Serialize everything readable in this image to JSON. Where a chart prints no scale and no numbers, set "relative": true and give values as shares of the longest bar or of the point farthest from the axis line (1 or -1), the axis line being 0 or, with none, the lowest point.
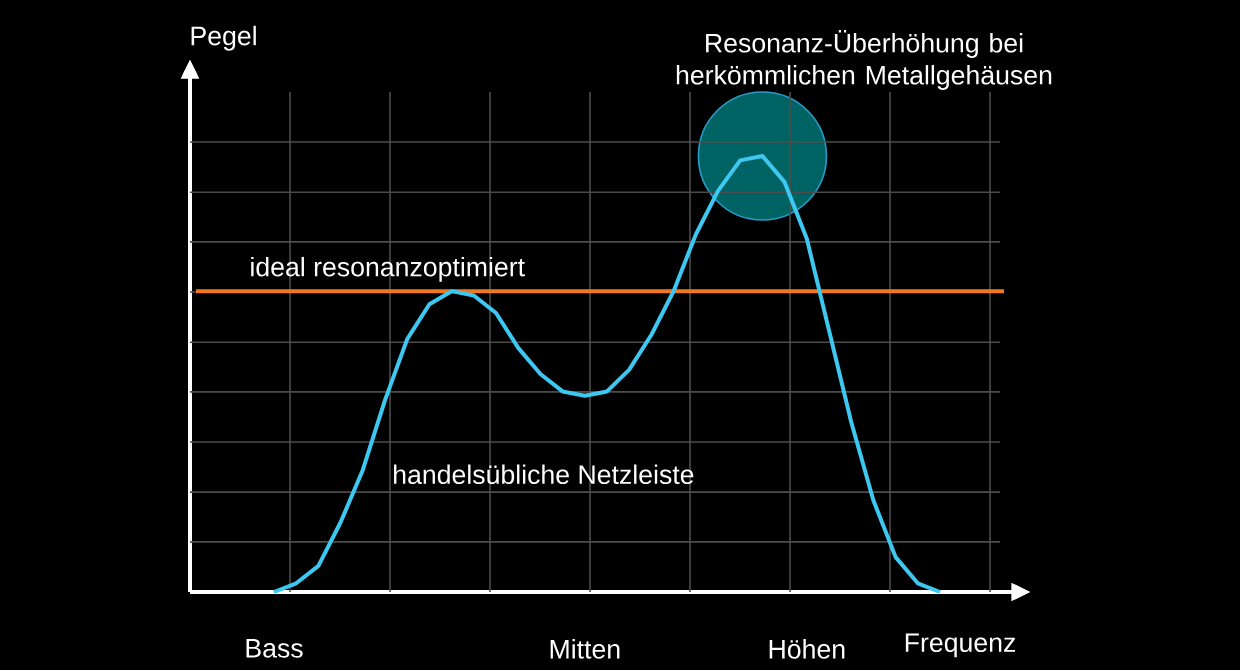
{
  "chart_data": {
    "type": "line",
    "relative": true,
    "xlabel": "Frequenz",
    "ylabel": "Pegel",
    "categories": [
      null,
      null,
      null,
      null,
      "Bass",
      null,
      null,
      null,
      null,
      null,
      null,
      null,
      null,
      null,
      null,
      null,
      null,
      null,
      "Mitten",
      null,
      null,
      null,
      null,
      null,
      null,
      null,
      null,
      null,
      "Höhen",
      null,
      null,
      null,
      null,
      null,
      null,
      null,
      null,
      null
    ],
    "series": [
      {
        "name": "handelsübliche Netzleiste",
        "color": "#3cc8f0",
        "values": [
          null,
          null,
          null,
          null,
          0,
          0.02,
          0.06,
          0.16,
          0.28,
          0.44,
          0.58,
          0.66,
          0.69,
          0.68,
          0.64,
          0.56,
          0.5,
          0.46,
          0.45,
          0.46,
          0.51,
          0.59,
          0.69,
          0.82,
          0.92,
          0.99,
          1,
          0.94,
          0.81,
          0.6,
          0.39,
          0.21,
          0.08,
          0.02,
          0,
          null,
          null,
          null
        ]
      }
    ],
    "ref_lines": [
      {
        "axis": "y",
        "value": 0.69,
        "label": "ideal resonanzoptimiert",
        "color": "#f07820"
      }
    ],
    "annotations": [
      "Resonanz-Überhöhung bei herkömmlichen Metallgehäusen"
    ],
    "grid": true,
    "marker": "none",
    "line_style": "solid"
  }
}
